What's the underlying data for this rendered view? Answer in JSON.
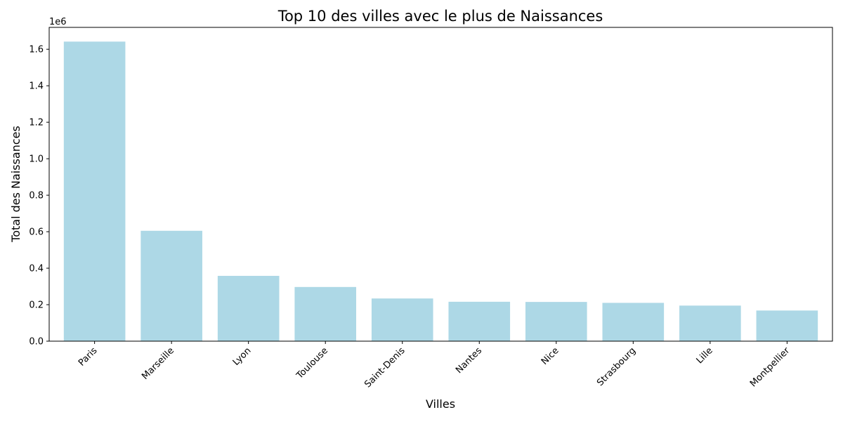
{
  "chart_data": {
    "type": "bar",
    "title": "Top 10 des villes avec le plus de Naissances",
    "xlabel": "Villes",
    "ylabel": "Total des Naissances",
    "categories": [
      "Paris",
      "Marseille",
      "Lyon",
      "Toulouse",
      "Saint-Denis",
      "Nantes",
      "Nice",
      "Strasbourg",
      "Lille",
      "Montpellier"
    ],
    "values": [
      1642000,
      605000,
      358000,
      297000,
      234000,
      216000,
      215000,
      210000,
      195000,
      168000
    ],
    "ylim": [
      0,
      1720000
    ],
    "y_ticks": [
      0,
      200000,
      400000,
      600000,
      800000,
      1000000,
      1200000,
      1400000,
      1600000
    ],
    "y_tick_labels": [
      "0.0",
      "0.2",
      "0.4",
      "0.6",
      "0.8",
      "1.0",
      "1.2",
      "1.4",
      "1.6"
    ],
    "y_offset_label": "1e6",
    "x_tick_rotation": "45",
    "bar_color": "#add8e6",
    "grid": false,
    "legend": "none"
  }
}
